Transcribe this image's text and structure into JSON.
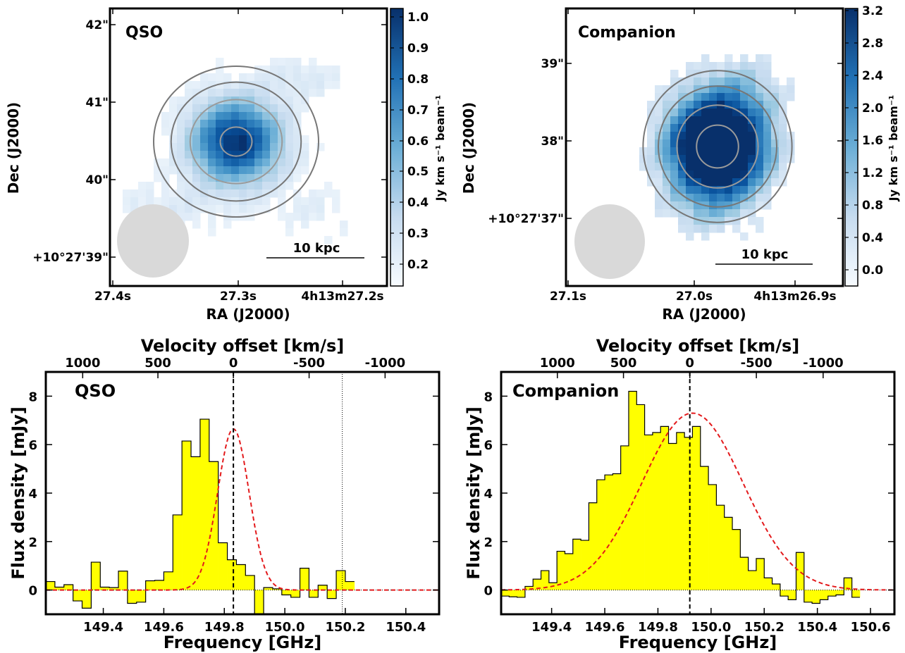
{
  "chart_data": [
    {
      "type": "heatmap",
      "panel_label": "QSO",
      "xlabel": "RA (J2000)",
      "ylabel": "Dec (J2000)",
      "xticks": [
        "27.4s",
        "27.3s",
        "4h13m27.2s"
      ],
      "yticks": [
        "42\"",
        "41\"",
        "40\"",
        "+10°27'39\""
      ],
      "colorbar_label": "Jy km s⁻¹ beam⁻¹",
      "colorbar_range": [
        0.13,
        1.03
      ],
      "colorbar_ticks": [
        "0.2",
        "0.3",
        "0.4",
        "0.5",
        "0.6",
        "0.7",
        "0.8",
        "0.9",
        "1.0"
      ],
      "scalebar_label": "10 kpc",
      "peak_value": 1.0,
      "beam": "synthesized beam ellipse (bottom-left)",
      "contours": "grey, 4 levels around peak"
    },
    {
      "type": "heatmap",
      "panel_label": "Companion",
      "xlabel": "RA (J2000)",
      "ylabel": "Dec (J2000)",
      "xticks": [
        "27.1s",
        "27.0s",
        "4h13m26.9s"
      ],
      "yticks": [
        "39\"",
        "38\"",
        "+10°27'37\""
      ],
      "colorbar_label": "Jy km s⁻¹ beam⁻¹",
      "colorbar_range": [
        -0.2,
        3.2
      ],
      "colorbar_ticks": [
        "0.0",
        "0.4",
        "0.8",
        "1.2",
        "1.6",
        "2.0",
        "2.4",
        "2.8",
        "3.2"
      ],
      "scalebar_label": "10 kpc",
      "peak_value": 3.2,
      "beam": "synthesized beam ellipse (bottom-left)",
      "contours": "grey, 4 levels around peak"
    },
    {
      "type": "bar",
      "panel_label": "QSO",
      "xlabel": "Frequency [GHz]",
      "ylabel": "Flux density [mJy]",
      "top_xlabel": "Velocity offset [km/s]",
      "xlim": [
        149.21,
        150.51
      ],
      "ylim": [
        -1.0,
        9.0
      ],
      "xticks": [
        149.4,
        149.6,
        149.8,
        150.0,
        150.2,
        150.4
      ],
      "yticks": [
        0,
        2,
        4,
        6,
        8
      ],
      "top_xticks": [
        "1000",
        "500",
        "0",
        "-500",
        "-1000"
      ],
      "top_xtick_velocities": [
        1000,
        500,
        0,
        -500,
        -1000
      ],
      "line_center_ghz": 149.83,
      "marker_line_ghz": 150.19,
      "bin_width_ghz": 0.03,
      "bins_start_ghz": 149.21,
      "flux_mjy": [
        0.35,
        0.12,
        0.22,
        -0.45,
        -0.75,
        1.15,
        0.12,
        0.1,
        0.78,
        -0.55,
        -0.5,
        0.38,
        0.4,
        0.75,
        3.1,
        6.15,
        5.5,
        7.05,
        5.3,
        1.95,
        1.25,
        1.05,
        0.6,
        -1.0,
        0.1,
        0.05,
        -0.2,
        -0.3,
        0.9,
        -0.3,
        0.2,
        -0.35,
        0.8,
        0.35
      ],
      "gaussian_fit": {
        "amplitude": 6.65,
        "center": 149.83,
        "sigma": 0.052
      }
    },
    {
      "type": "bar",
      "panel_label": "Companion",
      "xlabel": "Frequency [GHz]",
      "ylabel": "Flux density [mJy]",
      "top_xlabel": "Velocity offset [km/s]",
      "xlim": [
        149.21,
        150.69
      ],
      "ylim": [
        -1.0,
        9.0
      ],
      "xticks": [
        149.4,
        149.6,
        149.8,
        150.0,
        150.2,
        150.4,
        150.6
      ],
      "yticks": [
        0,
        2,
        4,
        6,
        8
      ],
      "top_xticks": [
        "1000",
        "500",
        "0",
        "-500",
        "-1000"
      ],
      "top_xtick_velocities": [
        1000,
        500,
        0,
        -500,
        -1000
      ],
      "line_center_ghz": 149.92,
      "bin_width_ghz": 0.03,
      "bins_start_ghz": 149.21,
      "flux_mjy": [
        -0.25,
        -0.28,
        -0.3,
        0.15,
        0.45,
        0.8,
        0.3,
        1.6,
        1.5,
        2.1,
        2.05,
        3.6,
        4.55,
        4.75,
        4.8,
        5.95,
        8.2,
        7.65,
        6.4,
        6.5,
        6.75,
        6.05,
        6.5,
        6.3,
        6.75,
        5.1,
        4.35,
        3.5,
        3.0,
        2.5,
        1.35,
        0.8,
        1.3,
        0.5,
        0.25,
        -0.25,
        -0.4,
        1.55,
        -0.5,
        -0.55,
        -0.4,
        -0.25,
        -0.2,
        0.5,
        -0.3
      ],
      "gaussian_fit": {
        "amplitude": 7.3,
        "center": 149.93,
        "sigma": 0.19
      }
    }
  ]
}
